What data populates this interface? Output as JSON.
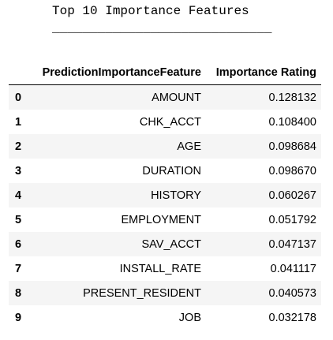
{
  "output": {
    "title": "Top 10 Importance Features",
    "underline": "_____________________________"
  },
  "table": {
    "columns": {
      "index": "",
      "feature": "PredictionImportanceFeature",
      "rating": "Importance Rating"
    },
    "rows": [
      {
        "index": "0",
        "feature": "AMOUNT",
        "rating": "0.128132"
      },
      {
        "index": "1",
        "feature": "CHK_ACCT",
        "rating": "0.108400"
      },
      {
        "index": "2",
        "feature": "AGE",
        "rating": "0.098684"
      },
      {
        "index": "3",
        "feature": "DURATION",
        "rating": "0.098670"
      },
      {
        "index": "4",
        "feature": "HISTORY",
        "rating": "0.060267"
      },
      {
        "index": "5",
        "feature": "EMPLOYMENT",
        "rating": "0.051792"
      },
      {
        "index": "6",
        "feature": "SAV_ACCT",
        "rating": "0.047137"
      },
      {
        "index": "7",
        "feature": "INSTALL_RATE",
        "rating": "0.041117"
      },
      {
        "index": "8",
        "feature": "PRESENT_RESIDENT",
        "rating": "0.040573"
      },
      {
        "index": "9",
        "feature": "JOB",
        "rating": "0.032178"
      }
    ]
  }
}
